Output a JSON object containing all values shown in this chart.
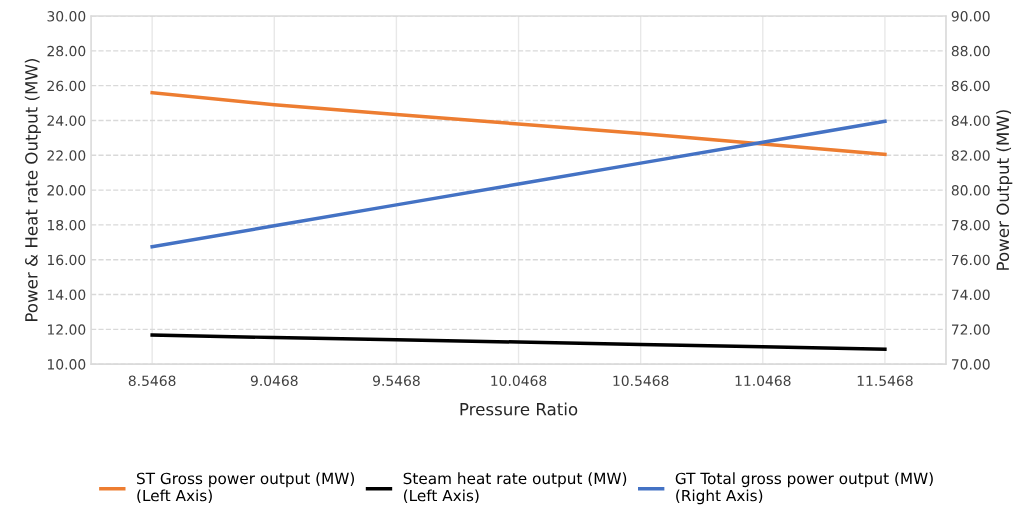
{
  "chart_data": {
    "type": "line",
    "xlabel": "Pressure Ratio",
    "ylabel": "Power & Heat rate Output (MW)",
    "y2label": "Power Output (MW)",
    "x": [
      8.5468,
      9.0468,
      9.5468,
      10.0468,
      10.5468,
      11.0468,
      11.5468
    ],
    "series": [
      {
        "name": "ST Gross power output (MW)\n(Left Axis)",
        "color": "#ed7d31",
        "values": [
          25.6,
          24.9,
          24.35,
          23.8,
          23.25,
          22.65,
          22.05
        ]
      },
      {
        "name": "Steam heat rate output (MW)\n(Left Axis)",
        "color": "#000000",
        "values": [
          11.67,
          11.53,
          11.4,
          11.27,
          11.13,
          11.0,
          10.86
        ]
      },
      {
        "name": "GT Total gross power output (MW)\n(Right Axis)",
        "color": "#4472c4",
        "axis": "y2",
        "values": [
          76.75,
          77.95,
          79.15,
          80.35,
          81.55,
          82.75,
          83.95
        ]
      }
    ],
    "xlim": [
      8.2968,
      11.7968
    ],
    "xticks": [
      {
        "value": 8.5468,
        "label": "8.5468"
      },
      {
        "value": 9.0468,
        "label": "9.0468"
      },
      {
        "value": 9.5468,
        "label": "9.5468"
      },
      {
        "value": 10.0468,
        "label": "10.0468"
      },
      {
        "value": 10.5468,
        "label": "10.5468"
      },
      {
        "value": 11.0468,
        "label": "11.0468"
      },
      {
        "value": 11.5468,
        "label": "11.5468"
      }
    ],
    "ylim": [
      10,
      30
    ],
    "yticks": [
      {
        "value": 10,
        "label": "10.00"
      },
      {
        "value": 12,
        "label": "12.00"
      },
      {
        "value": 14,
        "label": "14.00"
      },
      {
        "value": 16,
        "label": "16.00"
      },
      {
        "value": 18,
        "label": "18.00"
      },
      {
        "value": 20,
        "label": "20.00"
      },
      {
        "value": 22,
        "label": "22.00"
      },
      {
        "value": 24,
        "label": "24.00"
      },
      {
        "value": 26,
        "label": "26.00"
      },
      {
        "value": 28,
        "label": "28.00"
      },
      {
        "value": 30,
        "label": "30.00"
      }
    ],
    "y2lim": [
      70,
      90
    ],
    "y2ticks": [
      {
        "value": 70,
        "label": "70.00"
      },
      {
        "value": 72,
        "label": "72.00"
      },
      {
        "value": 74,
        "label": "74.00"
      },
      {
        "value": 76,
        "label": "76.00"
      },
      {
        "value": 78,
        "label": "78.00"
      },
      {
        "value": 80,
        "label": "80.00"
      },
      {
        "value": 82,
        "label": "82.00"
      },
      {
        "value": 84,
        "label": "84.00"
      },
      {
        "value": 86,
        "label": "86.00"
      },
      {
        "value": 88,
        "label": "88.00"
      },
      {
        "value": 90,
        "label": "90.00"
      }
    ],
    "grid": true,
    "legend": "bottom",
    "marker": "none",
    "line_style": "solid"
  }
}
